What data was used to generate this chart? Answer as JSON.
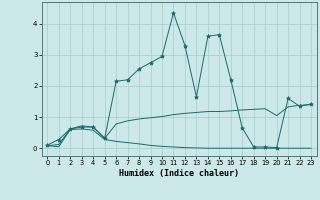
{
  "xlabel": "Humidex (Indice chaleur)",
  "x_ticks": [
    0,
    1,
    2,
    3,
    4,
    5,
    6,
    7,
    8,
    9,
    10,
    11,
    12,
    13,
    14,
    15,
    16,
    17,
    18,
    19,
    20,
    21,
    22,
    23
  ],
  "xlim": [
    -0.5,
    23.5
  ],
  "ylim": [
    -0.25,
    4.7
  ],
  "yticks": [
    0,
    1,
    2,
    3,
    4
  ],
  "background_color": "#cce8e8",
  "grid_color": "#aacccc",
  "line_color": "#1a6b6b",
  "series": {
    "line1_x": [
      0,
      1,
      2,
      3,
      4,
      5,
      6,
      7,
      8,
      9,
      10,
      11,
      12,
      13,
      14,
      15,
      16,
      17,
      18,
      19,
      20,
      21,
      22,
      23
    ],
    "line1_y": [
      0.1,
      0.28,
      0.62,
      0.68,
      0.68,
      0.32,
      2.15,
      2.2,
      2.55,
      2.75,
      2.95,
      4.35,
      3.3,
      1.65,
      3.6,
      3.65,
      2.2,
      0.65,
      0.04,
      0.04,
      0.02,
      1.6,
      1.35,
      1.42
    ],
    "line2_x": [
      0,
      1,
      2,
      3,
      4,
      5,
      6,
      7,
      8,
      9,
      10,
      11,
      12,
      13,
      14,
      15,
      16,
      17,
      18,
      19,
      20,
      21,
      22,
      23
    ],
    "line2_y": [
      0.08,
      0.12,
      0.62,
      0.72,
      0.68,
      0.32,
      0.78,
      0.88,
      0.94,
      0.98,
      1.02,
      1.08,
      1.12,
      1.15,
      1.18,
      1.18,
      1.2,
      1.23,
      1.25,
      1.27,
      1.05,
      1.33,
      1.38,
      1.4
    ],
    "line3_x": [
      0,
      1,
      2,
      3,
      4,
      5,
      6,
      7,
      8,
      9,
      10,
      11,
      12,
      13,
      14,
      15,
      16,
      17,
      18,
      19,
      20,
      21,
      22,
      23
    ],
    "line3_y": [
      0.08,
      0.05,
      0.6,
      0.62,
      0.58,
      0.28,
      0.22,
      0.18,
      0.14,
      0.09,
      0.06,
      0.04,
      0.02,
      0.01,
      0.0,
      0.0,
      0.0,
      0.0,
      0.0,
      0.0,
      0.0,
      0.0,
      0.0,
      0.0
    ]
  }
}
